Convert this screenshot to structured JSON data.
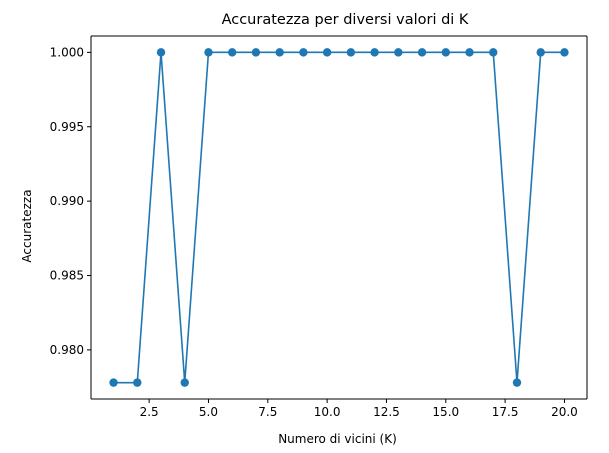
{
  "colors": {
    "series": "#1f77b4",
    "axis": "#000000",
    "background": "#ffffff"
  },
  "chart_data": {
    "type": "line",
    "title": "Accuratezza per diversi valori di K",
    "xlabel": "Numero di vicini (K)",
    "ylabel": "Accuratezza",
    "xlim": [
      0.05,
      20.95
    ],
    "ylim": [
      0.9767,
      1.0011
    ],
    "grid": false,
    "legend": "none",
    "x_ticks": [
      2.5,
      5.0,
      7.5,
      10.0,
      12.5,
      15.0,
      17.5,
      20.0
    ],
    "x_tick_labels": [
      "2.5",
      "5.0",
      "7.5",
      "10.0",
      "12.5",
      "15.0",
      "17.5",
      "20.0"
    ],
    "y_ticks": [
      0.98,
      0.985,
      0.99,
      0.995,
      1.0
    ],
    "y_tick_labels": [
      "0.980",
      "0.985",
      "0.990",
      "0.995",
      "1.000"
    ],
    "series": [
      {
        "marker": "circle",
        "x": [
          1,
          2,
          3,
          4,
          5,
          6,
          7,
          8,
          9,
          10,
          11,
          12,
          13,
          14,
          15,
          16,
          17,
          18,
          19,
          20
        ],
        "values": [
          0.9778,
          0.9778,
          1.0,
          0.9778,
          1.0,
          1.0,
          1.0,
          1.0,
          1.0,
          1.0,
          1.0,
          1.0,
          1.0,
          1.0,
          1.0,
          1.0,
          1.0,
          0.9778,
          1.0,
          1.0
        ]
      }
    ]
  }
}
